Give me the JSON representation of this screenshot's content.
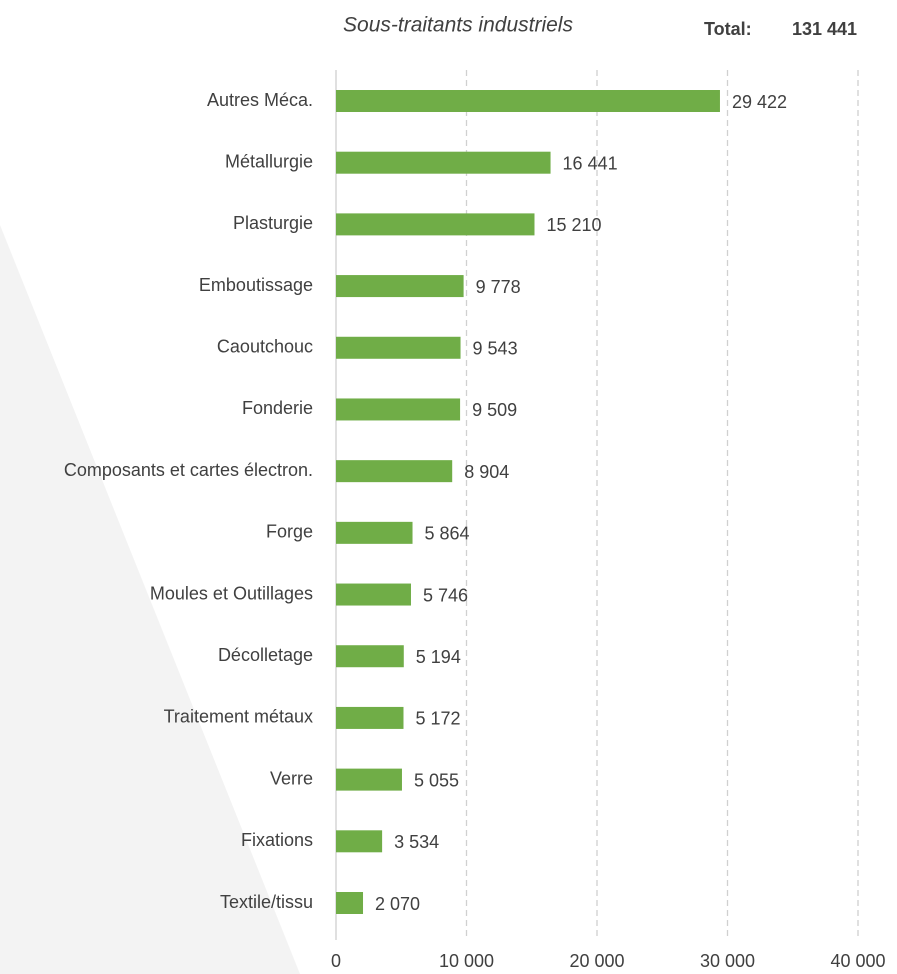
{
  "chart_data": {
    "type": "bar",
    "orientation": "horizontal",
    "title": "Sous-traitants industriels",
    "total_label": "Total:",
    "total_value": "131 441",
    "categories": [
      "Autres Méca.",
      "Métallurgie",
      "Plasturgie",
      "Emboutissage",
      "Caoutchouc",
      "Fonderie",
      "Composants et cartes électron.",
      "Forge",
      "Moules et Outillages",
      "Décolletage",
      "Traitement métaux",
      "Verre",
      "Fixations",
      "Textile/tissu"
    ],
    "values": [
      29422,
      16441,
      15210,
      9778,
      9543,
      9509,
      8904,
      5864,
      5746,
      5194,
      5172,
      5055,
      3534,
      2070
    ],
    "value_labels": [
      "29 422",
      "16 441",
      "15 210",
      "9 778",
      "9 543",
      "9 509",
      "8 904",
      "5 864",
      "5 746",
      "5 194",
      "5 172",
      "5 055",
      "3 534",
      "2 070"
    ],
    "color": "#70ad47",
    "xlim": [
      0,
      40000
    ],
    "xticks": [
      0,
      {
        "value": 10000,
        "label": "10 000"
      },
      {
        "value": 20000,
        "label": "20 000"
      },
      {
        "value": 30000,
        "label": "30 000"
      },
      {
        "value": 40000,
        "label": "40 000"
      }
    ],
    "grid": true
  }
}
